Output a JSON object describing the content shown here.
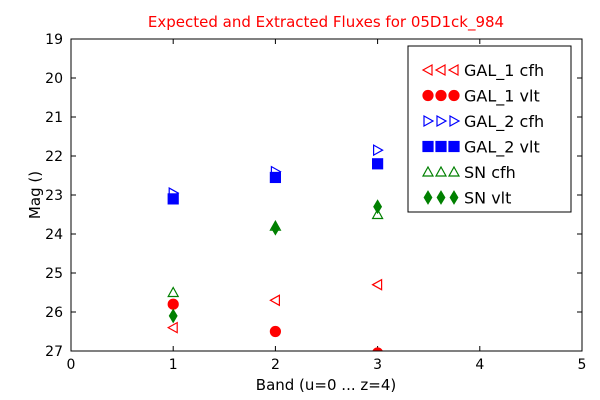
{
  "chart_data": {
    "type": "scatter",
    "title": "Expected and Extracted Fluxes for 05D1ck_984",
    "title_color": "#ff0000",
    "xlabel": "Band (u=0 ... z=4)",
    "ylabel": "Mag ()",
    "xlim": [
      0,
      5
    ],
    "ylim": [
      27,
      19
    ],
    "y_inverted": true,
    "xticks": [
      0,
      1,
      2,
      3,
      4,
      5
    ],
    "yticks": [
      19,
      20,
      21,
      22,
      23,
      24,
      25,
      26,
      27
    ],
    "grid": false,
    "legend_position": "top-right",
    "series": [
      {
        "name": "GAL_1 cfh",
        "marker": "triangle-left",
        "filled": false,
        "color": "#ff0000",
        "points": [
          {
            "x": 1,
            "y": 26.4
          },
          {
            "x": 2,
            "y": 25.7
          },
          {
            "x": 3,
            "y": 25.3
          }
        ]
      },
      {
        "name": "GAL_1 vlt",
        "marker": "circle",
        "filled": true,
        "color": "#ff0000",
        "points": [
          {
            "x": 1,
            "y": 25.8
          },
          {
            "x": 2,
            "y": 26.5
          },
          {
            "x": 3,
            "y": 27.05
          }
        ]
      },
      {
        "name": "GAL_2 cfh",
        "marker": "triangle-right",
        "filled": false,
        "color": "#0000ff",
        "points": [
          {
            "x": 1,
            "y": 22.95
          },
          {
            "x": 2,
            "y": 22.4
          },
          {
            "x": 3,
            "y": 21.85
          }
        ]
      },
      {
        "name": "GAL_2 vlt",
        "marker": "square",
        "filled": true,
        "color": "#0000ff",
        "points": [
          {
            "x": 1,
            "y": 23.1
          },
          {
            "x": 2,
            "y": 22.55
          },
          {
            "x": 3,
            "y": 22.2
          }
        ]
      },
      {
        "name": "SN cfh",
        "marker": "triangle-up",
        "filled": false,
        "color": "#008000",
        "points": [
          {
            "x": 1,
            "y": 25.5
          },
          {
            "x": 2,
            "y": 23.8
          },
          {
            "x": 3,
            "y": 23.5
          }
        ]
      },
      {
        "name": "SN vlt",
        "marker": "diamond",
        "filled": true,
        "color": "#008000",
        "points": [
          {
            "x": 1,
            "y": 26.1
          },
          {
            "x": 2,
            "y": 23.85
          },
          {
            "x": 3,
            "y": 23.3
          }
        ]
      }
    ]
  }
}
